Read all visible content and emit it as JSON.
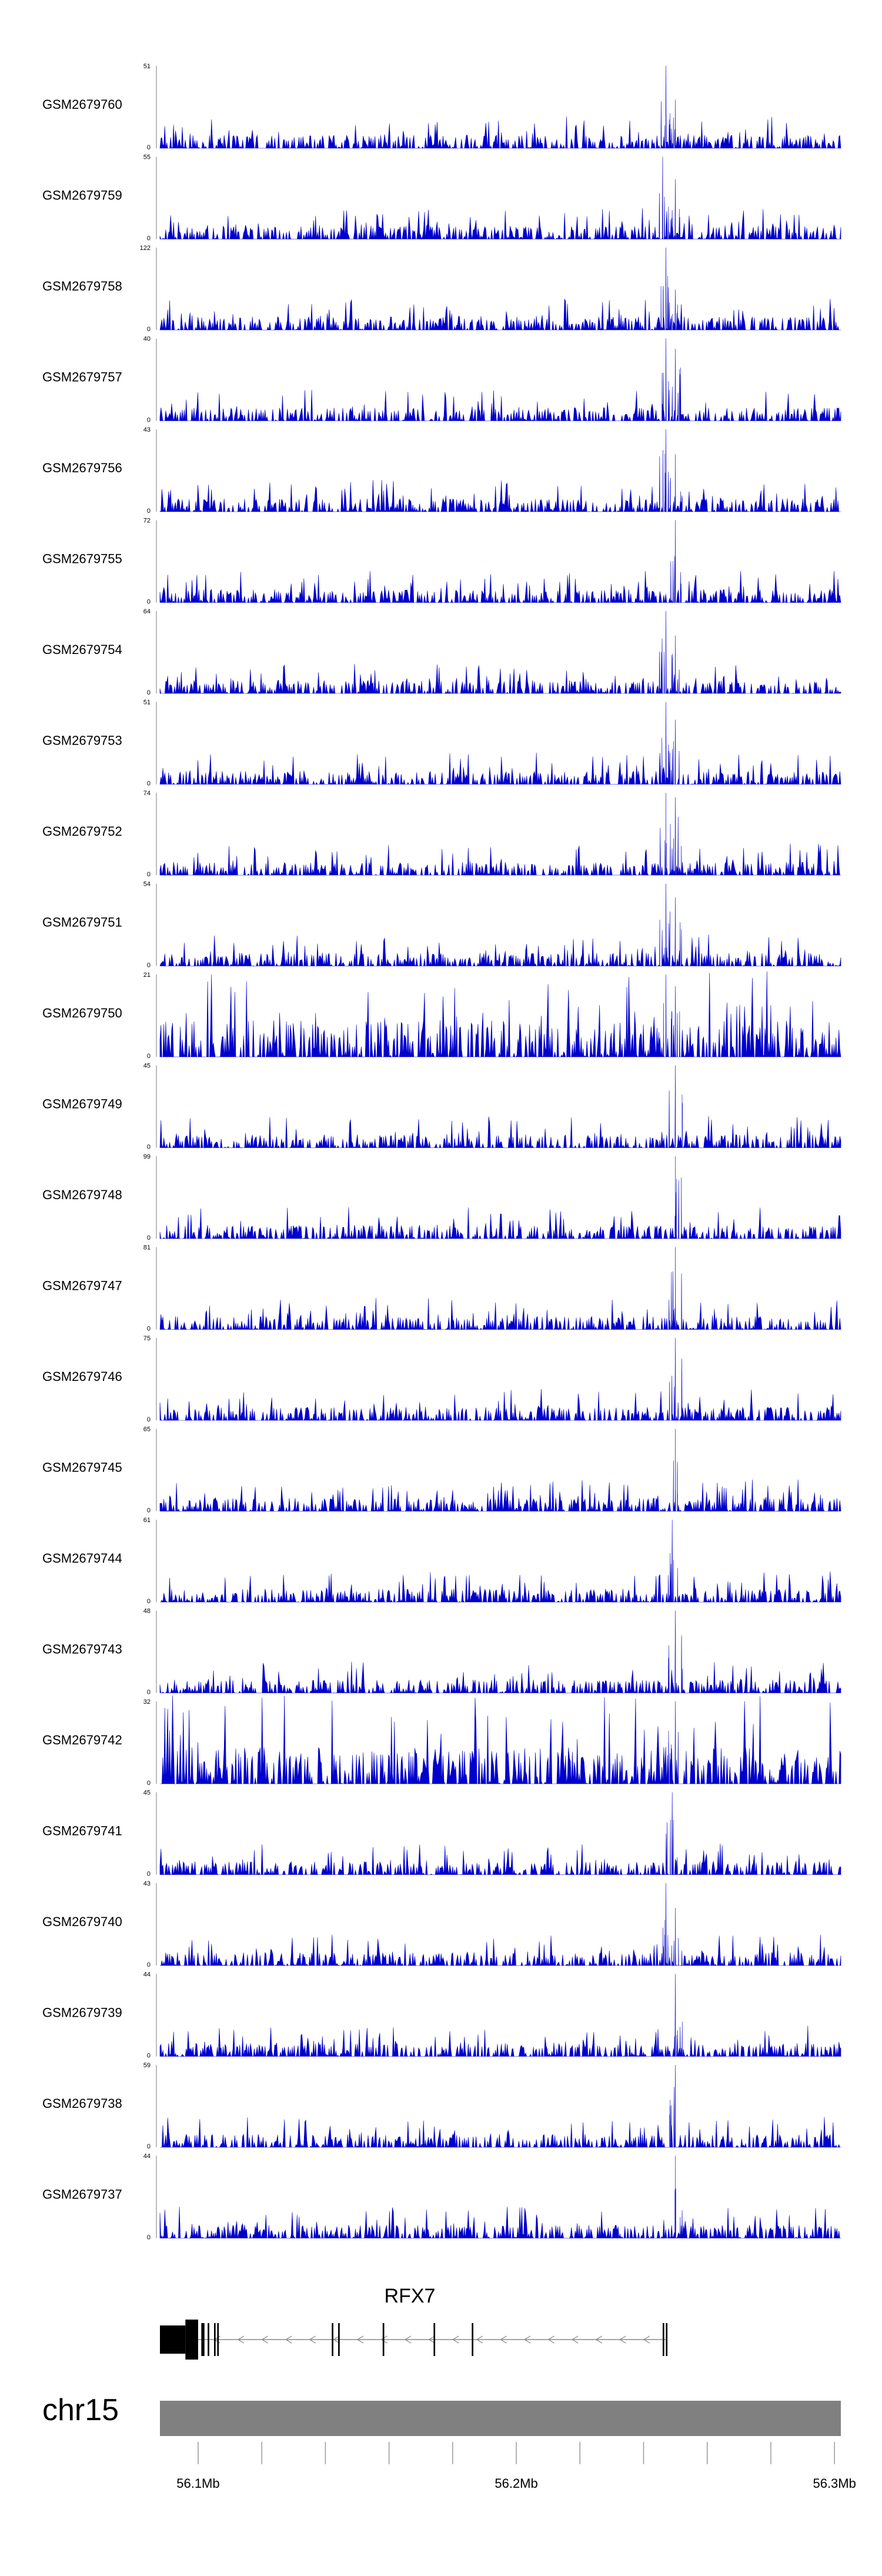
{
  "chart_data": {
    "type": "area",
    "description_note": "",
    "tracks": [
      {
        "name": "GSM2679760",
        "ymax": 51,
        "ymin": 0,
        "peak_positions_mb": [
          56.247,
          56.25
        ],
        "peak_values": [
          51,
          30
        ]
      },
      {
        "name": "GSM2679759",
        "ymax": 55,
        "ymin": 0,
        "peak_positions_mb": [
          56.246,
          56.25
        ],
        "peak_values": [
          55,
          40
        ]
      },
      {
        "name": "GSM2679758",
        "ymax": 122,
        "ymin": 0,
        "peak_positions_mb": [
          56.247,
          56.25
        ],
        "peak_values": [
          122,
          60
        ]
      },
      {
        "name": "GSM2679757",
        "ymax": 40,
        "ymin": 0,
        "peak_positions_mb": [
          56.247,
          56.25
        ],
        "peak_values": [
          40,
          35
        ]
      },
      {
        "name": "GSM2679756",
        "ymax": 43,
        "ymin": 0,
        "peak_positions_mb": [
          56.247,
          56.25
        ],
        "peak_values": [
          43,
          30
        ]
      },
      {
        "name": "GSM2679755",
        "ymax": 72,
        "ymin": 0,
        "peak_positions_mb": [
          56.25
        ],
        "peak_values": [
          72
        ]
      },
      {
        "name": "GSM2679754",
        "ymax": 64,
        "ymin": 0,
        "peak_positions_mb": [
          56.247,
          56.25
        ],
        "peak_values": [
          64,
          45
        ]
      },
      {
        "name": "GSM2679753",
        "ymax": 51,
        "ymin": 0,
        "peak_positions_mb": [
          56.247,
          56.25
        ],
        "peak_values": [
          51,
          40
        ]
      },
      {
        "name": "GSM2679752",
        "ymax": 74,
        "ymin": 0,
        "peak_positions_mb": [
          56.247,
          56.25
        ],
        "peak_values": [
          74,
          70
        ]
      },
      {
        "name": "GSM2679751",
        "ymax": 54,
        "ymin": 0,
        "peak_positions_mb": [
          56.247,
          56.25
        ],
        "peak_values": [
          54,
          45
        ]
      },
      {
        "name": "GSM2679750",
        "ymax": 21,
        "ymin": 0,
        "peak_positions_mb": [
          56.247,
          56.25
        ],
        "peak_values": [
          21,
          18
        ]
      },
      {
        "name": "GSM2679749",
        "ymax": 45,
        "ymin": 0,
        "peak_positions_mb": [
          56.25
        ],
        "peak_values": [
          45
        ]
      },
      {
        "name": "GSM2679748",
        "ymax": 99,
        "ymin": 0,
        "peak_positions_mb": [
          56.25
        ],
        "peak_values": [
          99
        ]
      },
      {
        "name": "GSM2679747",
        "ymax": 81,
        "ymin": 0,
        "peak_positions_mb": [
          56.25
        ],
        "peak_values": [
          81
        ]
      },
      {
        "name": "GSM2679746",
        "ymax": 75,
        "ymin": 0,
        "peak_positions_mb": [
          56.25
        ],
        "peak_values": [
          75
        ]
      },
      {
        "name": "GSM2679745",
        "ymax": 65,
        "ymin": 0,
        "peak_positions_mb": [
          56.25
        ],
        "peak_values": [
          65
        ]
      },
      {
        "name": "GSM2679744",
        "ymax": 61,
        "ymin": 0,
        "peak_positions_mb": [
          56.249
        ],
        "peak_values": [
          61
        ]
      },
      {
        "name": "GSM2679743",
        "ymax": 48,
        "ymin": 0,
        "peak_positions_mb": [
          56.25
        ],
        "peak_values": [
          48
        ]
      },
      {
        "name": "GSM2679742",
        "ymax": 32,
        "ymin": 0,
        "peak_positions_mb": [
          56.25
        ],
        "peak_values": [
          32
        ]
      },
      {
        "name": "GSM2679741",
        "ymax": 45,
        "ymin": 0,
        "peak_positions_mb": [
          56.249
        ],
        "peak_values": [
          45
        ]
      },
      {
        "name": "GSM2679740",
        "ymax": 43,
        "ymin": 0,
        "peak_positions_mb": [
          56.247,
          56.25
        ],
        "peak_values": [
          43,
          30
        ]
      },
      {
        "name": "GSM2679739",
        "ymax": 44,
        "ymin": 0,
        "peak_positions_mb": [
          56.25
        ],
        "peak_values": [
          44
        ]
      },
      {
        "name": "GSM2679738",
        "ymax": 59,
        "ymin": 0,
        "peak_positions_mb": [
          56.25
        ],
        "peak_values": [
          59
        ]
      },
      {
        "name": "GSM2679737",
        "ymax": 44,
        "ymin": 0,
        "peak_positions_mb": [
          56.25
        ],
        "peak_values": [
          44
        ]
      }
    ],
    "x_range_mb": [
      56.088,
      56.302
    ],
    "gene": {
      "name": "RFX7",
      "strand": "-",
      "start_mb": 56.088,
      "end_mb": 56.247,
      "exons_mb": [
        [
          56.088,
          56.096
        ],
        [
          56.096,
          56.1
        ],
        [
          56.101,
          56.102
        ],
        [
          56.103,
          56.1035
        ],
        [
          56.105,
          56.1055
        ],
        [
          56.106,
          56.1065
        ],
        [
          56.142,
          56.1425
        ],
        [
          56.144,
          56.1445
        ],
        [
          56.158,
          56.1585
        ],
        [
          56.174,
          56.1745
        ],
        [
          56.186,
          56.1865
        ],
        [
          56.246,
          56.2465
        ],
        [
          56.247,
          56.2475
        ]
      ]
    },
    "chromosome": "chr15",
    "axis_ticks_mb": [
      56.1,
      56.12,
      56.14,
      56.16,
      56.18,
      56.2,
      56.22,
      56.24,
      56.26,
      56.28,
      56.3
    ],
    "axis_tick_labels": [
      "56.1Mb",
      "56.2Mb",
      "56.3Mb"
    ],
    "axis_labeled_ticks_mb": [
      56.1,
      56.2,
      56.3
    ],
    "colors": {
      "signal": "#0000cc",
      "ideogram": "#808080",
      "gene": "#000000",
      "intron": "#888888"
    }
  }
}
